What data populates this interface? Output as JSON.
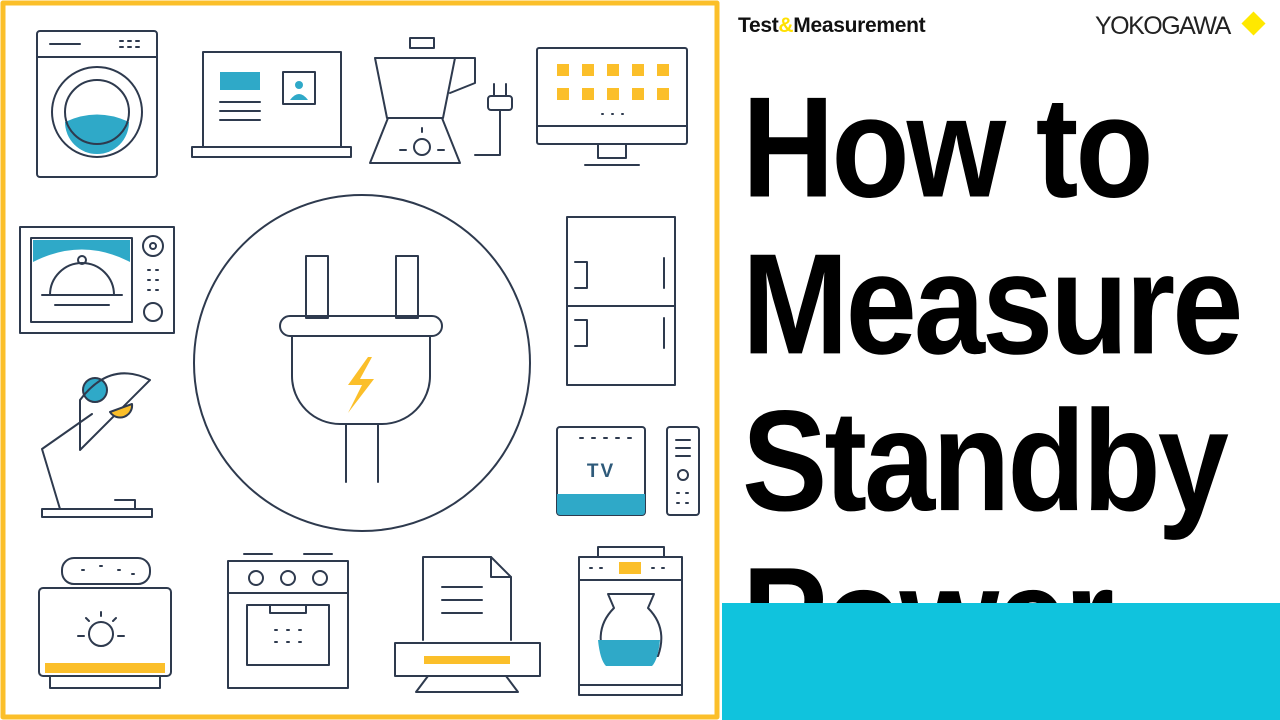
{
  "brand": {
    "part1": "Test",
    "amp": "&",
    "part2": "Measurement"
  },
  "logo": {
    "text": "YOKOGAWA",
    "mark": "yellow-diamond"
  },
  "title_lines": [
    "How to",
    "Measure",
    "Standby",
    "Power"
  ],
  "art": {
    "tv_label": "TV",
    "center_icon": "power-plug-icon"
  },
  "colors": {
    "frame": "#fbbf2a",
    "accent_blue": "#2fa9c8",
    "accent_yellow": "#fbbf2a",
    "stroke": "#2e3a4e",
    "bar": "#10c3dd",
    "logo_diamond": "#ffe800"
  }
}
